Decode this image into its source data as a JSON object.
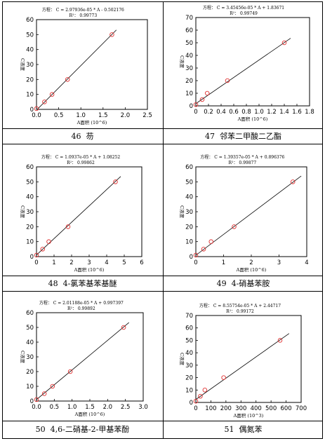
{
  "captions": [
    {
      "number": "46",
      "name": "芴"
    },
    {
      "number": "47",
      "name": "邻苯二甲酸二乙酯"
    },
    {
      "number": "48",
      "name": "4-氯苯基苯基醚"
    },
    {
      "number": "49",
      "name": "4-硝基苯胺"
    },
    {
      "number": "50",
      "name": "4,6-二硝基-2-甲基苯酚"
    },
    {
      "number": "51",
      "name": "偶氮苯"
    }
  ],
  "chart_data": [
    {
      "type": "scatter",
      "equation": "方程：  C = 2.97936e-05 * A - 0.502176",
      "r2": "R²：  0.99773",
      "xlabel": "A面积 (10^6)",
      "ylabel": "C浓度",
      "xlim": [
        0,
        2.5
      ],
      "ylim": [
        0,
        60
      ],
      "xticks": [
        "0.0",
        "0.5",
        "1.0",
        "1.5",
        "2.0",
        "2.5"
      ],
      "yticks": [
        "0",
        "10",
        "20",
        "30",
        "40",
        "50",
        "60"
      ],
      "x": [
        0.0,
        0.18,
        0.35,
        0.7,
        1.7
      ],
      "y": [
        0.5,
        5,
        10,
        20,
        50
      ],
      "line": {
        "x": [
          0,
          1.8
        ],
        "y": [
          -0.5,
          53.1
        ]
      }
    },
    {
      "type": "scatter",
      "equation": "方程：  C = 3.45456e-05 * A + 1.83671",
      "r2": "R²：  0.99749",
      "xlabel": "A面积 (10^6)",
      "ylabel": "C浓度",
      "xlim": [
        0,
        1.8
      ],
      "ylim": [
        0,
        70
      ],
      "xticks": [
        "0",
        "0.2",
        "0.4",
        "0.6",
        "0.8",
        "1.0",
        "1.2",
        "1.4",
        "1.6",
        "1.8"
      ],
      "yticks": [
        "0",
        "10",
        "20",
        "30",
        "40",
        "50",
        "60",
        "70"
      ],
      "x": [
        0.0,
        0.1,
        0.18,
        0.5,
        1.4
      ],
      "y": [
        1,
        5,
        10,
        20,
        50
      ],
      "line": {
        "x": [
          0,
          1.5
        ],
        "y": [
          1.8,
          53.6
        ]
      }
    },
    {
      "type": "scatter",
      "equation": "方程：  C = 1.0937e-05 * A + 1.08252",
      "r2": "R²：  0.99862",
      "xlabel": "A面积 (10^6)",
      "ylabel": "C浓度",
      "xlim": [
        0,
        6
      ],
      "ylim": [
        0,
        60
      ],
      "xticks": [
        "0",
        "1",
        "2",
        "3",
        "4",
        "5",
        "6"
      ],
      "yticks": [
        "0",
        "10",
        "20",
        "30",
        "40",
        "50",
        "60"
      ],
      "x": [
        0.0,
        0.35,
        0.7,
        1.8,
        4.5
      ],
      "y": [
        1,
        5,
        10,
        20,
        50
      ],
      "line": {
        "x": [
          0,
          4.8
        ],
        "y": [
          1.1,
          53.6
        ]
      }
    },
    {
      "type": "scatter",
      "equation": "方程：  C = 1.39357e-05 * A + 0.896376",
      "r2": "R²：  0.99877",
      "xlabel": "A面积 (10^6)",
      "ylabel": "C浓度",
      "xlim": [
        0,
        4
      ],
      "ylim": [
        0,
        60
      ],
      "xticks": [
        "0",
        "1",
        "2",
        "3",
        "4"
      ],
      "yticks": [
        "0",
        "10",
        "20",
        "30",
        "40",
        "50",
        "60"
      ],
      "x": [
        0.0,
        0.28,
        0.55,
        1.38,
        3.5
      ],
      "y": [
        1,
        5,
        10,
        20,
        50
      ],
      "line": {
        "x": [
          0,
          3.8
        ],
        "y": [
          0.9,
          53.9
        ]
      }
    },
    {
      "type": "scatter",
      "equation": "方程：  C = 2.01188e-05 * A + 0.997397",
      "r2": "R²：  0.99892",
      "xlabel": "A面积 (10^6)",
      "ylabel": "C浓度",
      "xlim": [
        0,
        3.0
      ],
      "ylim": [
        0,
        60
      ],
      "xticks": [
        "0.0",
        "0.5",
        "1.0",
        "1.5",
        "2.0",
        "2.5",
        "3.0"
      ],
      "yticks": [
        "0",
        "10",
        "20",
        "30",
        "40",
        "50",
        "60"
      ],
      "x": [
        0.0,
        0.22,
        0.45,
        0.95,
        2.45
      ],
      "y": [
        1,
        5,
        10,
        20,
        50
      ],
      "line": {
        "x": [
          0,
          2.6
        ],
        "y": [
          1.0,
          53.3
        ]
      }
    },
    {
      "type": "scatter",
      "equation": "方程：  C = 8.55754e-05 * A + 2.44717",
      "r2": "R²：  0.99172",
      "xlabel": "A面积 (10^3)",
      "ylabel": "C浓度",
      "xlim": [
        0,
        700
      ],
      "ylim": [
        0,
        70
      ],
      "xticks": [
        "0",
        "100",
        "200",
        "300",
        "400",
        "500",
        "600",
        "700"
      ],
      "yticks": [
        "0",
        "10",
        "20",
        "30",
        "40",
        "50",
        "60",
        "70"
      ],
      "x": [
        0,
        30,
        60,
        185,
        560
      ],
      "y": [
        1,
        5,
        10,
        20,
        50
      ],
      "line": {
        "x": [
          0,
          620
        ],
        "y": [
          2.4,
          55.5
        ]
      }
    }
  ]
}
